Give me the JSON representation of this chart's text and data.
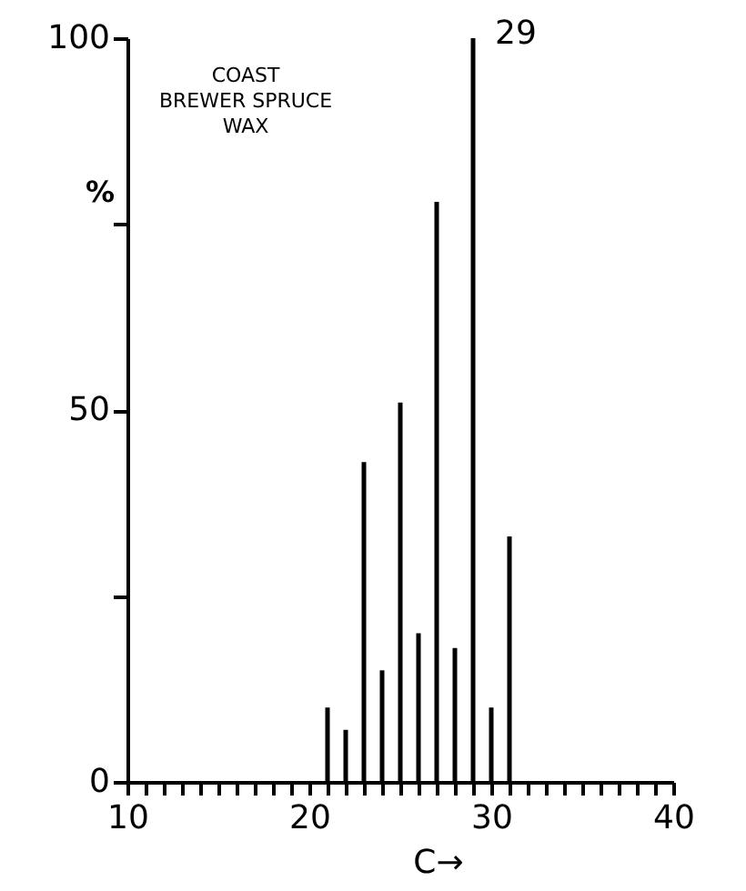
{
  "chart_data": {
    "type": "bar",
    "title": "COAST\nBREWER SPRUCE\nWAX",
    "xlabel": "C→",
    "ylabel": "%",
    "x": [
      21,
      22,
      23,
      24,
      25,
      26,
      27,
      28,
      29,
      30,
      31
    ],
    "values": [
      10,
      7,
      43,
      15,
      51,
      20,
      78,
      18,
      100,
      10,
      33
    ],
    "color": "#000000",
    "annotations": [
      {
        "text": "29",
        "x": 29,
        "y": 100
      }
    ],
    "xlim": [
      10,
      40
    ],
    "xticks": [
      10,
      {
        "value": 11,
        "label": null
      },
      {
        "value": 12,
        "label": null
      },
      {
        "value": 13,
        "label": null
      },
      {
        "value": 14,
        "label": null
      },
      {
        "value": 15,
        "label": null
      },
      {
        "value": 16,
        "label": null
      },
      {
        "value": 17,
        "label": null
      },
      {
        "value": 18,
        "label": null
      },
      {
        "value": 19,
        "label": null
      },
      20,
      {
        "value": 21,
        "label": null
      },
      {
        "value": 22,
        "label": null
      },
      {
        "value": 23,
        "label": null
      },
      {
        "value": 24,
        "label": null
      },
      {
        "value": 25,
        "label": null
      },
      {
        "value": 26,
        "label": null
      },
      {
        "value": 27,
        "label": null
      },
      {
        "value": 28,
        "label": null
      },
      {
        "value": 29,
        "label": null
      },
      30,
      {
        "value": 31,
        "label": null
      },
      {
        "value": 32,
        "label": null
      },
      {
        "value": 33,
        "label": null
      },
      {
        "value": 34,
        "label": null
      },
      {
        "value": 35,
        "label": null
      },
      {
        "value": 36,
        "label": null
      },
      {
        "value": 37,
        "label": null
      },
      {
        "value": 38,
        "label": null
      },
      {
        "value": 39,
        "label": null
      },
      40
    ],
    "ylim": [
      0,
      100
    ],
    "yticks": [
      0,
      {
        "value": 25,
        "label": null
      },
      50,
      {
        "value": 75,
        "label": null
      },
      100
    ],
    "grid": false
  }
}
